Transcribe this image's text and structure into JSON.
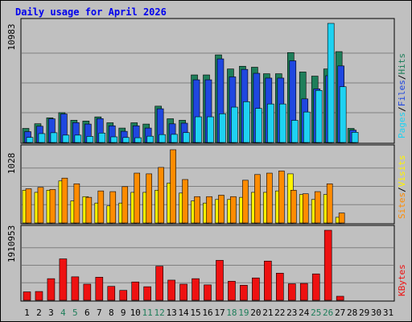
{
  "title": "Daily usage for April 2026",
  "colors": {
    "hits": "#1e7e5a",
    "files": "#1f47e0",
    "pages": "#1ed2f2",
    "visits": "#fff400",
    "sites": "#ff8c00",
    "kbytes": "#ee1111",
    "weekend_day": "#1e7e5a",
    "weekday": "#000000",
    "title": "#0000ee",
    "background": "#c0c0c0"
  },
  "chart_data": [
    {
      "type": "bar",
      "panel": "hits-files-pages",
      "right_label_parts": [
        "Pages",
        "Files",
        "Hits"
      ],
      "max_label": "10983",
      "ylim": [
        0,
        10983
      ],
      "grid": true,
      "categories": [
        "1",
        "2",
        "3",
        "4",
        "5",
        "6",
        "7",
        "8",
        "9",
        "10",
        "11",
        "12",
        "13",
        "14",
        "15",
        "16",
        "17",
        "18",
        "19",
        "20",
        "21",
        "22",
        "23",
        "24",
        "25",
        "26",
        "27",
        "28",
        "29",
        "30",
        "31"
      ],
      "weekend_days": [
        4,
        5,
        11,
        12,
        18,
        19,
        25,
        26
      ],
      "series": [
        {
          "name": "Hits",
          "values": [
            1300,
            1730,
            2270,
            2750,
            2050,
            1980,
            2360,
            1820,
            1330,
            1820,
            1700,
            3350,
            2190,
            2050,
            6230,
            6230,
            8080,
            6780,
            7030,
            6940,
            6340,
            6340,
            8290,
            6500,
            6120,
            6780,
            8380,
            1300,
            0,
            0,
            0
          ]
        },
        {
          "name": "Files",
          "values": [
            1000,
            1500,
            2180,
            2630,
            1830,
            1700,
            2200,
            1540,
            1030,
            1540,
            1330,
            3110,
            1720,
            1780,
            5780,
            5780,
            7710,
            6050,
            6740,
            6380,
            5940,
            5940,
            7530,
            4020,
            4940,
            6160,
            7060,
            1140,
            0,
            0,
            0
          ]
        },
        {
          "name": "Pages",
          "values": [
            470,
            820,
            900,
            680,
            680,
            560,
            870,
            520,
            460,
            440,
            580,
            730,
            750,
            910,
            2370,
            2370,
            2650,
            3260,
            3760,
            3140,
            3550,
            3550,
            2040,
            2810,
            4800,
            10983,
            5140,
            940,
            0,
            0,
            0
          ]
        }
      ]
    },
    {
      "type": "bar",
      "panel": "visits-sites",
      "right_label_parts": [
        "Sites",
        "Visits"
      ],
      "max_label": "1028",
      "ylim": [
        0,
        1028
      ],
      "grid": true,
      "categories": [
        "1",
        "2",
        "3",
        "4",
        "5",
        "6",
        "7",
        "8",
        "9",
        "10",
        "11",
        "12",
        "13",
        "14",
        "15",
        "16",
        "17",
        "18",
        "19",
        "20",
        "21",
        "22",
        "23",
        "24",
        "25",
        "26",
        "27",
        "28",
        "29",
        "30",
        "31"
      ],
      "series": [
        {
          "name": "Visits",
          "values": [
            460,
            430,
            460,
            590,
            310,
            370,
            280,
            240,
            280,
            430,
            430,
            460,
            560,
            420,
            310,
            280,
            330,
            330,
            360,
            430,
            430,
            450,
            690,
            400,
            330,
            400,
            80,
            0,
            0,
            0,
            0
          ]
        },
        {
          "name": "Sites",
          "values": [
            480,
            500,
            470,
            630,
            550,
            360,
            450,
            440,
            510,
            700,
            690,
            780,
            1028,
            610,
            370,
            370,
            390,
            370,
            600,
            680,
            700,
            730,
            460,
            410,
            440,
            550,
            140,
            0,
            0,
            0,
            0
          ]
        }
      ]
    },
    {
      "type": "bar",
      "panel": "kbytes",
      "right_label_parts": [
        "KBytes"
      ],
      "max_label": "1910953",
      "ylim": [
        0,
        1910953
      ],
      "grid": true,
      "categories": [
        "1",
        "2",
        "3",
        "4",
        "5",
        "6",
        "7",
        "8",
        "9",
        "10",
        "11",
        "12",
        "13",
        "14",
        "15",
        "16",
        "17",
        "18",
        "19",
        "20",
        "21",
        "22",
        "23",
        "24",
        "25",
        "26",
        "27",
        "28",
        "29",
        "30",
        "31"
      ],
      "series": [
        {
          "name": "KBytes",
          "values": [
            230000,
            240000,
            590000,
            1130000,
            640000,
            440000,
            630000,
            380000,
            270000,
            500000,
            370000,
            930000,
            550000,
            440000,
            590000,
            420000,
            1090000,
            520000,
            410000,
            610000,
            1070000,
            740000,
            450000,
            460000,
            720000,
            1910953,
            110000,
            0,
            0,
            0,
            0
          ]
        }
      ]
    }
  ]
}
